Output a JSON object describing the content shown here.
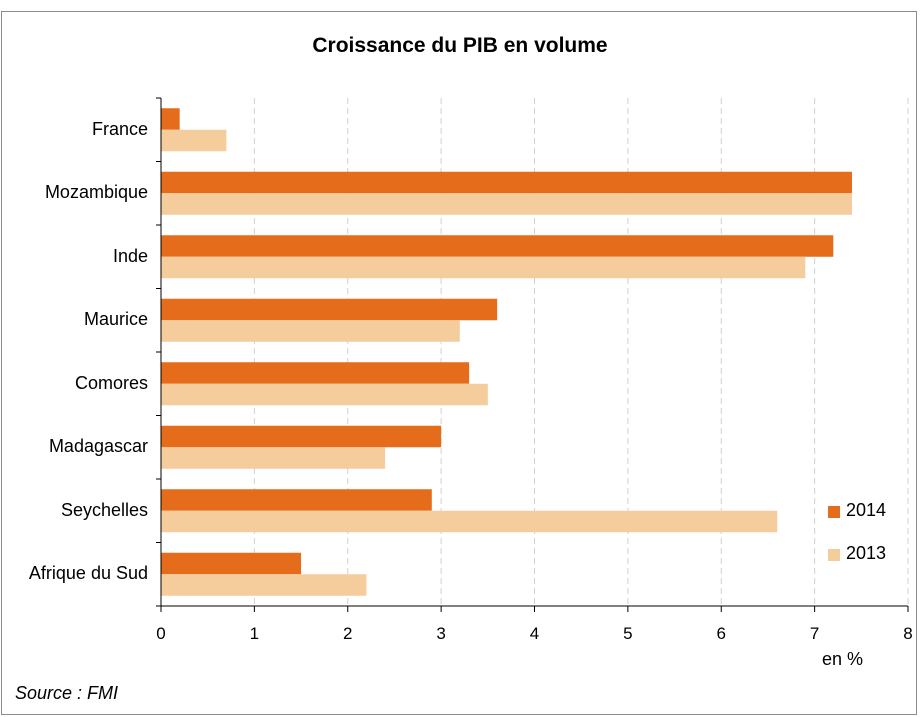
{
  "chart_data": {
    "type": "bar",
    "orientation": "horizontal",
    "title": "Croissance du PIB en volume",
    "categories": [
      "France",
      "Mozambique",
      "Inde",
      "Maurice",
      "Comores",
      "Madagascar",
      "Seychelles",
      "Afrique du Sud"
    ],
    "series": [
      {
        "name": "2014",
        "color": "#e46c1a",
        "values": [
          0.2,
          7.4,
          7.2,
          3.6,
          3.3,
          3.0,
          2.9,
          1.5
        ]
      },
      {
        "name": "2013",
        "color": "#f5cc9c",
        "values": [
          0.7,
          7.4,
          6.9,
          3.2,
          3.5,
          2.4,
          6.6,
          2.2
        ]
      }
    ],
    "xlim": [
      0,
      8
    ],
    "xticks": [
      "0",
      "1",
      "2",
      "3",
      "4",
      "5",
      "6",
      "7",
      "8"
    ],
    "xunit": "en %",
    "grid": "vertical-dashed",
    "legend_position": "bottom-right",
    "source": "Source : FMI"
  }
}
